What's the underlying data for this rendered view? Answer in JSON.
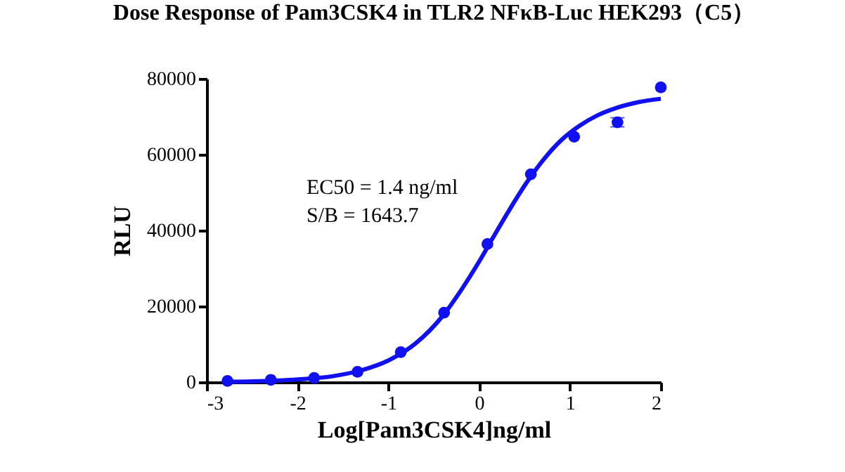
{
  "chart_data": {
    "type": "scatter",
    "title": "Dose Response of Pam3CSK4 in TLR2 NFκB-Luc HEK293（C5）",
    "xlabel": "Log[Pam3CSK4]ng/ml",
    "ylabel": "RLU",
    "xlim": [
      -3,
      2
    ],
    "xticks": [
      -3,
      -2,
      -1,
      0,
      1,
      2
    ],
    "ylim": [
      0,
      80000
    ],
    "yticks": [
      0,
      20000,
      40000,
      60000,
      80000
    ],
    "grid": false,
    "legend": false,
    "marker": "circle",
    "annotations": [
      "EC50 = 1.4 ng/ml",
      "S/B = 1643.7"
    ],
    "series": [
      {
        "color": "#1010f0",
        "x": [
          -2.771,
          -2.294,
          -1.817,
          -1.34,
          -0.863,
          -0.386,
          0.091,
          0.569,
          1.046,
          1.523,
          2
        ],
        "values": [
          300,
          600,
          1100,
          2700,
          7900,
          18300,
          36400,
          54800,
          64700,
          68500,
          77700
        ],
        "errors": [
          null,
          null,
          null,
          null,
          null,
          null,
          null,
          null,
          null,
          1200,
          null
        ]
      },
      {
        "type": "line",
        "color": "#1010f0",
        "marker": "none",
        "line_style": "solid",
        "x": [
          -2.8,
          -2.5,
          -2.0,
          -1.6,
          -1.3,
          -1.0,
          -0.7,
          -0.4,
          -0.2,
          0,
          0.15,
          0.3,
          0.5,
          0.7,
          0.9,
          1.1,
          1.3,
          1.5,
          1.75,
          2
        ],
        "values": [
          100,
          200,
          700,
          1600,
          3100,
          5700,
          10200,
          17500,
          24200,
          31800,
          38000,
          44100,
          51800,
          58400,
          63700,
          67500,
          70300,
          72200,
          73800,
          74700
        ]
      }
    ]
  }
}
